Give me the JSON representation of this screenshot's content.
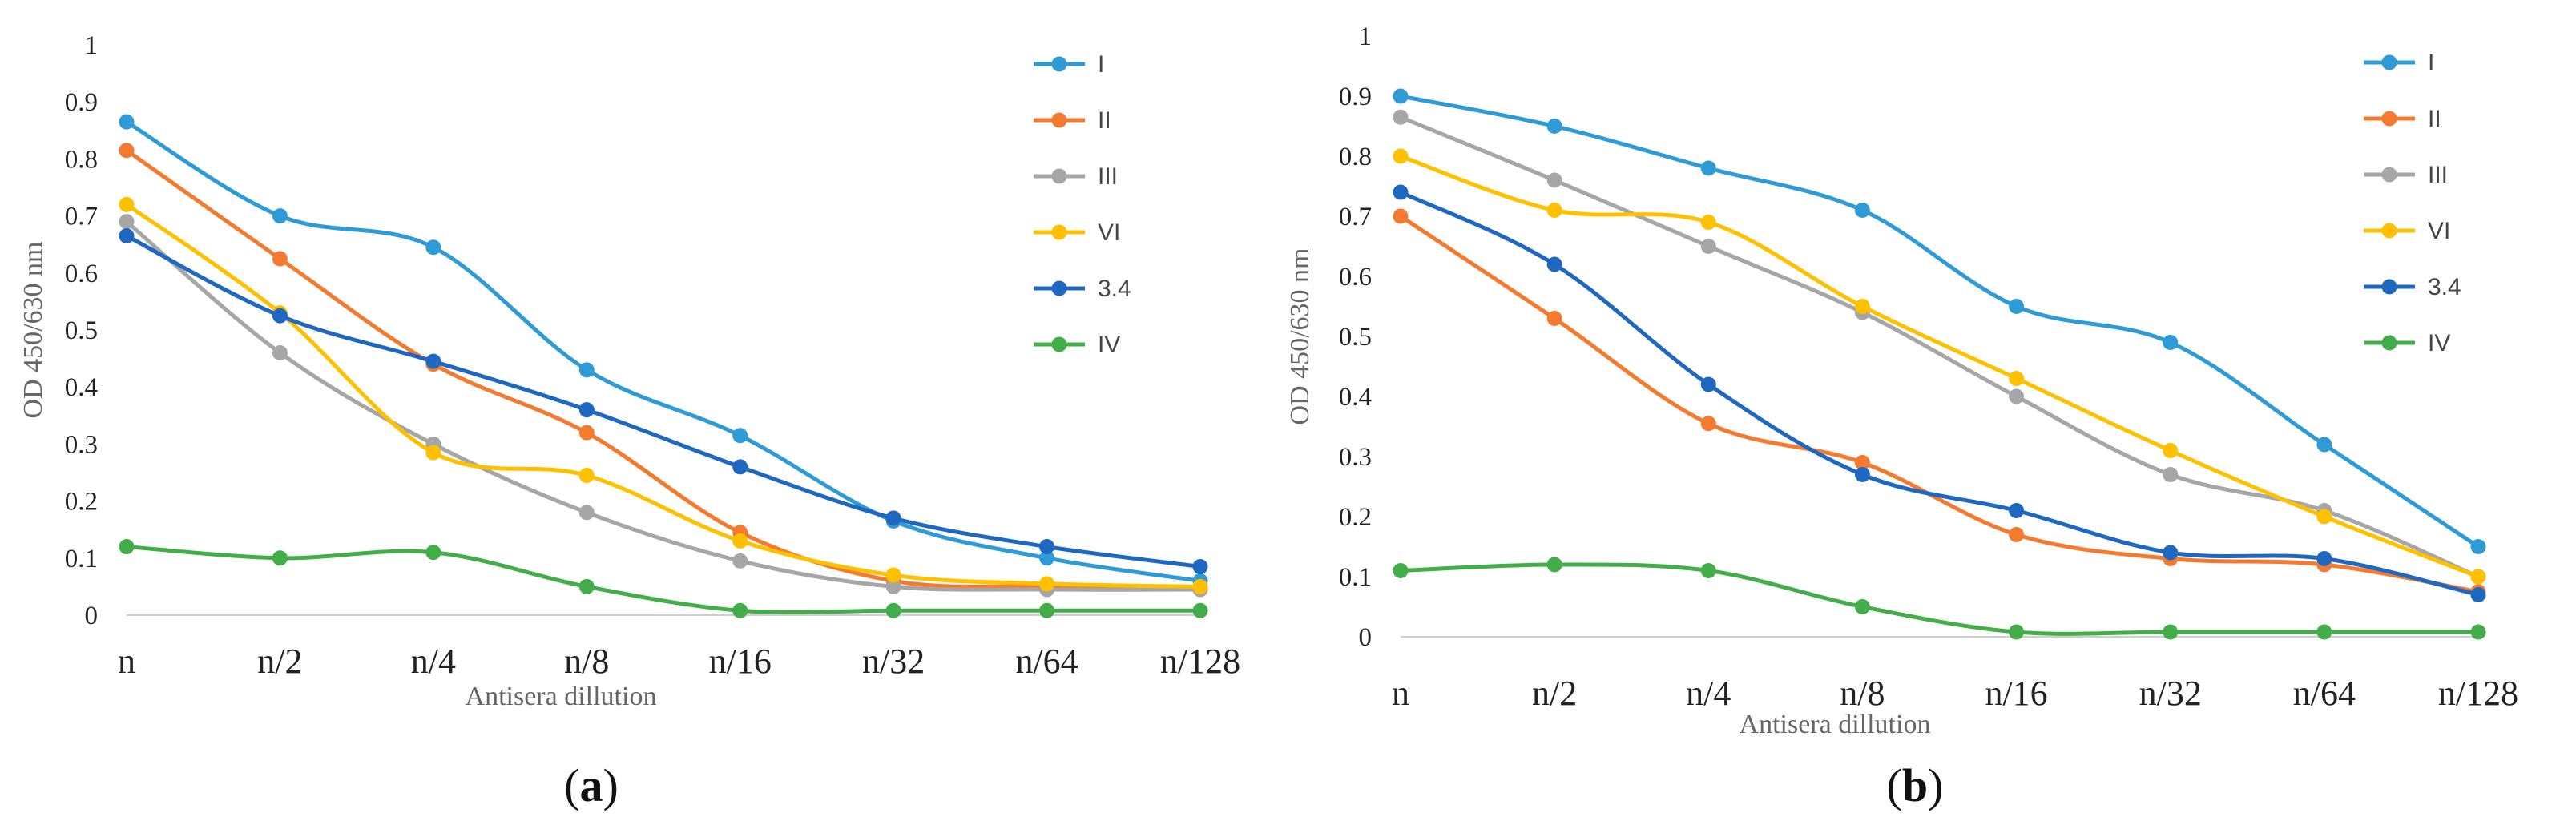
{
  "chart_data": [
    {
      "type": "line",
      "panel_label": "(a)",
      "panel_letter": "a",
      "xlabel": "Antisera dillution",
      "ylabel": "OD 450/630 nm",
      "categories": [
        "n",
        "n/2",
        "n/4",
        "n/8",
        "n/16",
        "n/32",
        "n/64",
        "n/128"
      ],
      "ylim": [
        0,
        1
      ],
      "yticks": [
        "0",
        "0.1",
        "0.2",
        "0.3",
        "0.4",
        "0.5",
        "0.6",
        "0.7",
        "0.8",
        "0.9",
        "1"
      ],
      "legend_position": "right",
      "series": [
        {
          "name": "I",
          "color": "#2e9bd6",
          "values": [
            0.865,
            0.7,
            0.645,
            0.43,
            0.315,
            0.165,
            0.1,
            0.06
          ]
        },
        {
          "name": "II",
          "color": "#f47a30",
          "values": [
            0.815,
            0.625,
            0.44,
            0.32,
            0.145,
            0.06,
            0.05,
            0.045
          ]
        },
        {
          "name": "III",
          "color": "#a6a6a6",
          "values": [
            0.69,
            0.46,
            0.3,
            0.18,
            0.095,
            0.05,
            0.045,
            0.045
          ]
        },
        {
          "name": "VI",
          "color": "#ffc000",
          "values": [
            0.72,
            0.53,
            0.285,
            0.245,
            0.13,
            0.07,
            0.055,
            0.05
          ]
        },
        {
          "name": "3.4",
          "color": "#1f68c2",
          "values": [
            0.665,
            0.525,
            0.445,
            0.36,
            0.26,
            0.17,
            0.12,
            0.085
          ]
        },
        {
          "name": "IV",
          "color": "#43ad4a",
          "values": [
            0.12,
            0.1,
            0.11,
            0.05,
            0.008,
            0.008,
            0.008,
            0.008
          ]
        }
      ]
    },
    {
      "type": "line",
      "panel_label": "(b)",
      "panel_letter": "b",
      "xlabel": "Antisera dillution",
      "ylabel": "OD 450/630 nm",
      "categories": [
        "n",
        "n/2",
        "n/4",
        "n/8",
        "n/16",
        "n/32",
        "n/64",
        "n/128"
      ],
      "ylim": [
        0,
        1
      ],
      "yticks": [
        "0",
        "0.1",
        "0.2",
        "0.3",
        "0.4",
        "0.5",
        "0.6",
        "0.7",
        "0.8",
        "0.9",
        "1"
      ],
      "legend_position": "right",
      "series": [
        {
          "name": "I",
          "color": "#2e9bd6",
          "values": [
            0.9,
            0.85,
            0.78,
            0.71,
            0.55,
            0.49,
            0.32,
            0.15
          ]
        },
        {
          "name": "II",
          "color": "#f47a30",
          "values": [
            0.7,
            0.53,
            0.355,
            0.29,
            0.17,
            0.13,
            0.12,
            0.075
          ]
        },
        {
          "name": "III",
          "color": "#a6a6a6",
          "values": [
            0.865,
            0.76,
            0.65,
            0.54,
            0.4,
            0.27,
            0.21,
            0.1
          ]
        },
        {
          "name": "VI",
          "color": "#ffc000",
          "values": [
            0.8,
            0.71,
            0.69,
            0.55,
            0.43,
            0.31,
            0.2,
            0.1
          ]
        },
        {
          "name": "3.4",
          "color": "#1f68c2",
          "values": [
            0.74,
            0.62,
            0.42,
            0.27,
            0.21,
            0.14,
            0.13,
            0.07
          ]
        },
        {
          "name": "IV",
          "color": "#43ad4a",
          "values": [
            0.11,
            0.12,
            0.11,
            0.05,
            0.008,
            0.008,
            0.008,
            0.008
          ]
        }
      ]
    }
  ]
}
